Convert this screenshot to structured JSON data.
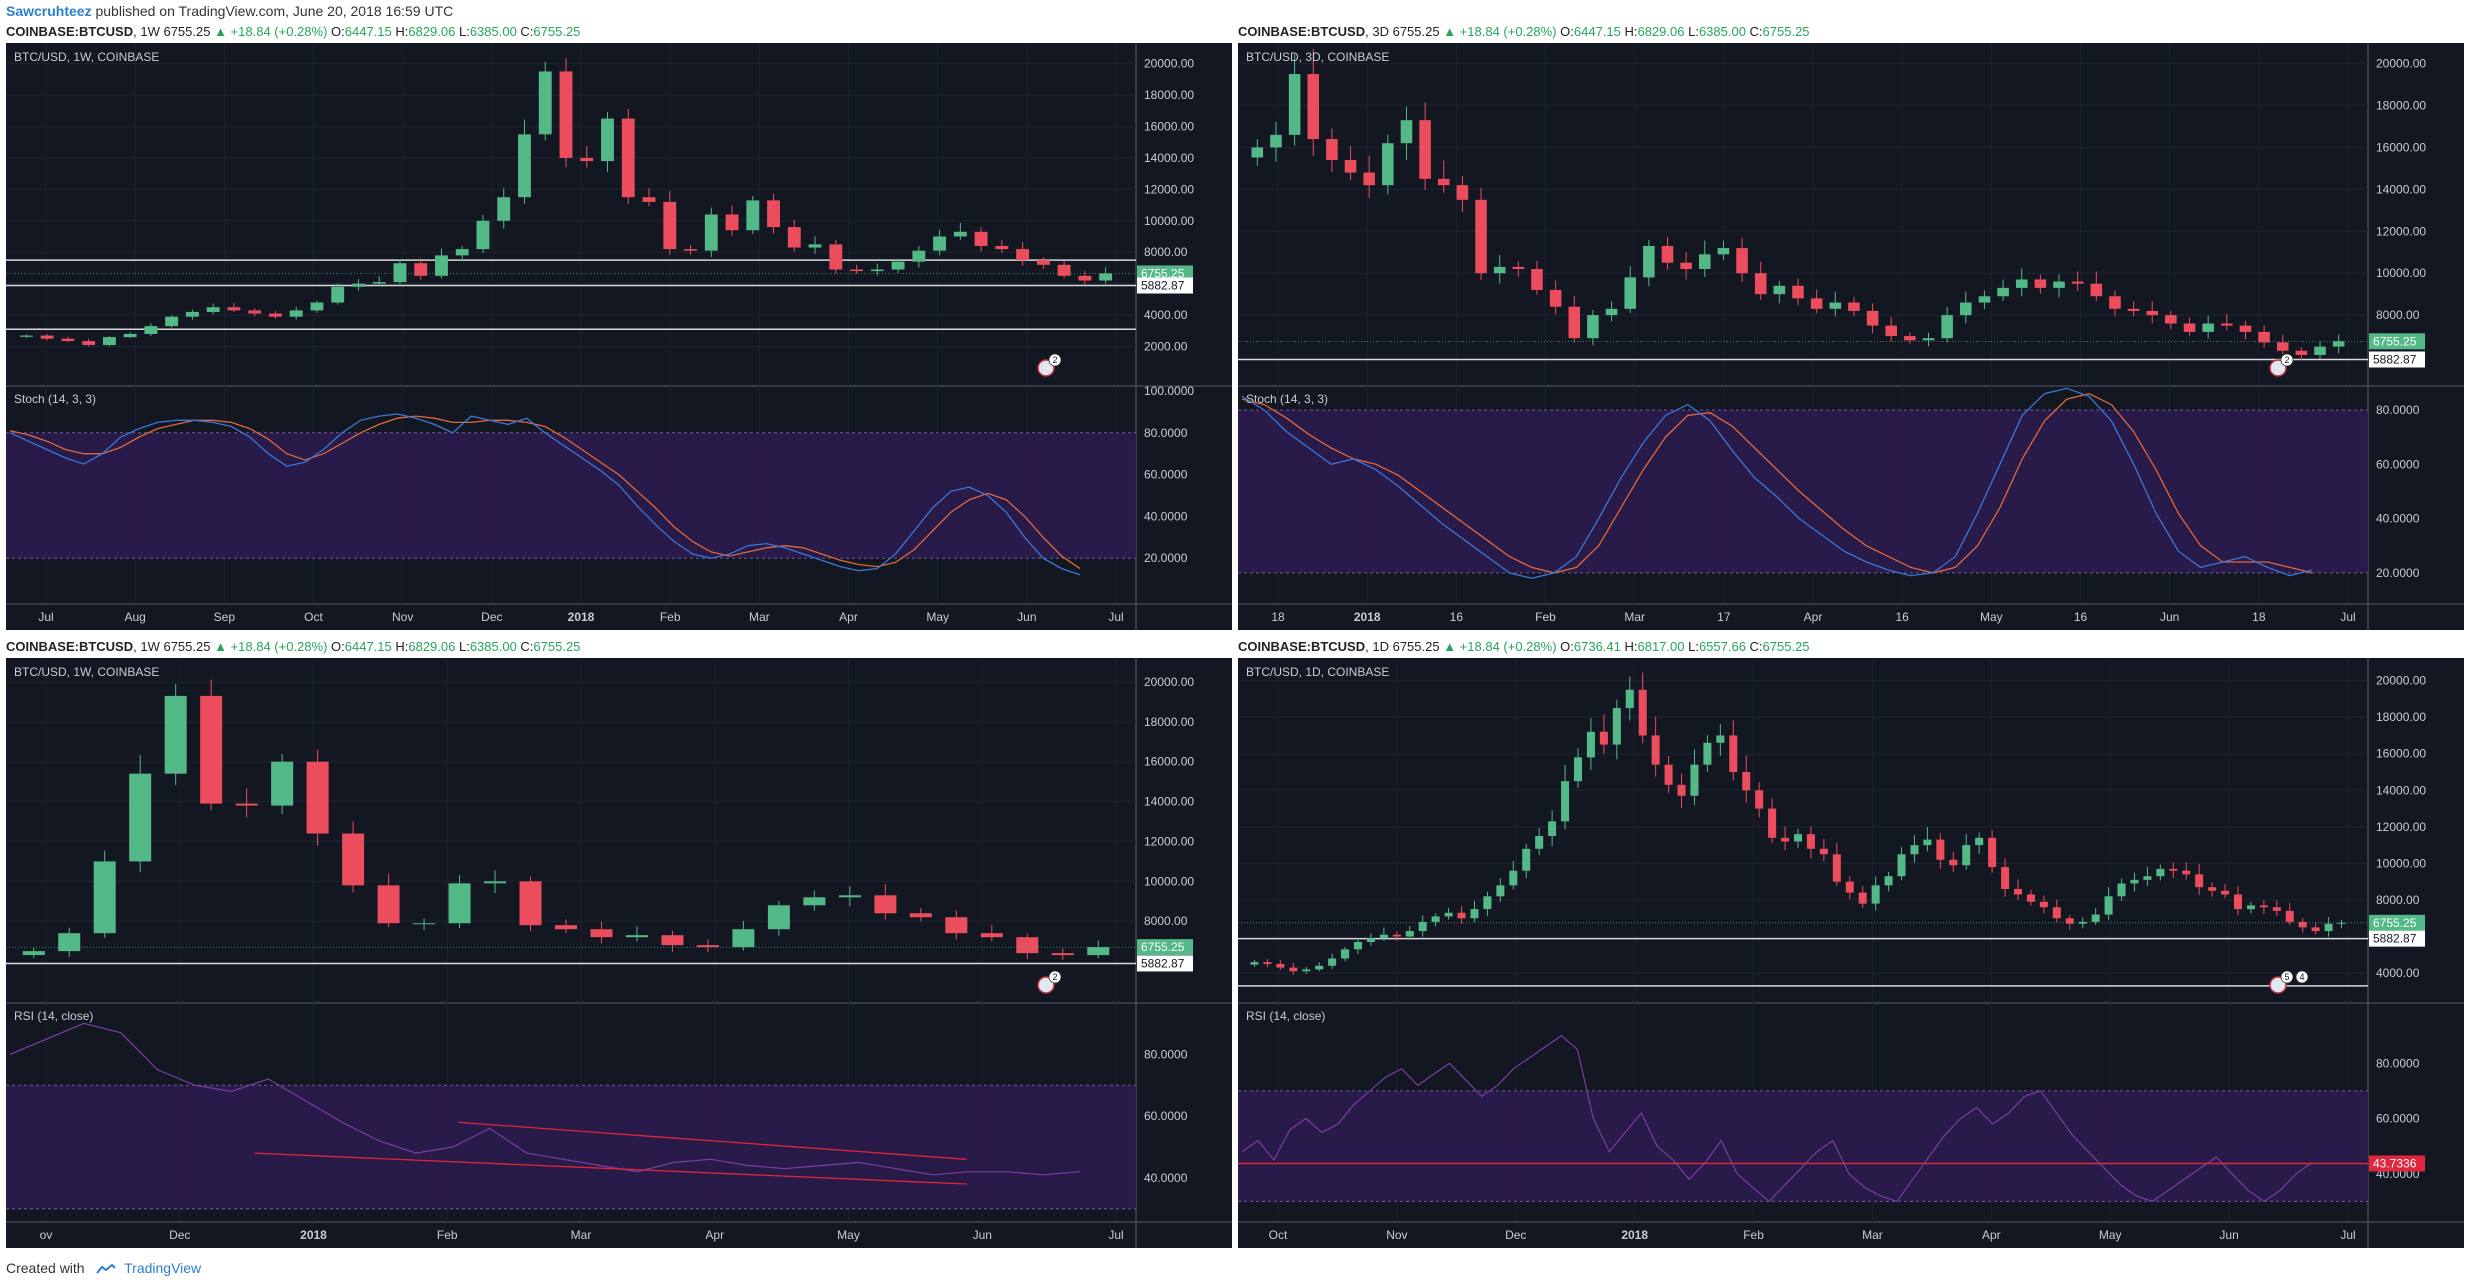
{
  "header": {
    "author": "Sawcruhteez",
    "published_text": "published on TradingView.com, June 20, 2018 16:59 UTC"
  },
  "footer": {
    "created_with": "Created with",
    "brand": "TradingView"
  },
  "colors": {
    "background": "#131722",
    "up": "#53b987",
    "down": "#eb4d5c",
    "band": "#2b1b4e",
    "stoch_k": "#3b76d6",
    "stoch_d": "#e0683a",
    "rsi": "#7a3ea1",
    "trend_line": "#e0263d",
    "price_label_bg": "#53b987"
  },
  "panels": [
    {
      "id": "p1",
      "header": {
        "symbol": "COINBASE:BTCUSD",
        "interval": "1W",
        "price": "6755.25",
        "change": "▲ +18.84 (+0.28%)",
        "o_label": "O:",
        "o": "6447.15",
        "h_label": "H:",
        "h": "6829.06",
        "l_label": "L:",
        "l": "6385.00",
        "c_label": "C:",
        "c": "6755.25"
      },
      "legend": "BTC/USD, 1W, COINBASE",
      "price_label": "6755.25",
      "hline_label": "5882.87",
      "indicator_name": "Stoch (14, 3, 3)",
      "ind_ticks": [
        "100.0000",
        "80.0000",
        "60.0000",
        "40.0000",
        "20.0000"
      ],
      "price_ticks": [
        "20000.00",
        "18000.00",
        "16000.00",
        "14000.00",
        "12000.00",
        "10000.00",
        "8000.00",
        "6000.00",
        "4000.00",
        "2000.00"
      ],
      "x_labels": [
        "Jul",
        "Aug",
        "Sep",
        "Oct",
        "Nov",
        "Dec",
        "2018",
        "Feb",
        "Mar",
        "Apr",
        "May",
        "Jun",
        "Jul"
      ],
      "badge": "2"
    },
    {
      "id": "p2",
      "header": {
        "symbol": "COINBASE:BTCUSD",
        "interval": "3D",
        "price": "6755.25",
        "change": "▲ +18.84 (+0.28%)",
        "o_label": "O:",
        "o": "6447.15",
        "h_label": "H:",
        "h": "6829.06",
        "l_label": "L:",
        "l": "6385.00",
        "c_label": "C:",
        "c": "6755.25"
      },
      "legend": "BTC/USD, 3D, COINBASE",
      "price_label": "6755.25",
      "hline_label": "5882.87",
      "indicator_name": "Stoch (14, 3, 3)",
      "ind_ticks": [
        "80.0000",
        "60.0000",
        "40.0000",
        "20.0000"
      ],
      "price_ticks": [
        "20000.00",
        "18000.00",
        "16000.00",
        "14000.00",
        "12000.00",
        "10000.00",
        "8000.00"
      ],
      "x_labels": [
        "18",
        "2018",
        "16",
        "Feb",
        "Mar",
        "17",
        "Apr",
        "16",
        "May",
        "16",
        "Jun",
        "18",
        "Jul"
      ],
      "badge": "2"
    },
    {
      "id": "p3",
      "header": {
        "symbol": "COINBASE:BTCUSD",
        "interval": "1W",
        "price": "6755.25",
        "change": "▲ +18.84 (+0.28%)",
        "o_label": "O:",
        "o": "6447.15",
        "h_label": "H:",
        "h": "6829.06",
        "l_label": "L:",
        "l": "6385.00",
        "c_label": "C:",
        "c": "6755.25"
      },
      "legend": "BTC/USD, 1W, COINBASE",
      "price_label": "6755.25",
      "hline_label": "5882.87",
      "indicator_name": "RSI (14, close)",
      "ind_ticks": [
        "80.0000",
        "60.0000",
        "40.0000"
      ],
      "price_ticks": [
        "20000.00",
        "18000.00",
        "16000.00",
        "14000.00",
        "12000.00",
        "10000.00",
        "8000.00"
      ],
      "x_labels": [
        "ov",
        "Dec",
        "2018",
        "Feb",
        "Mar",
        "Apr",
        "May",
        "Jun",
        "Jul"
      ],
      "badge": "2"
    },
    {
      "id": "p4",
      "header": {
        "symbol": "COINBASE:BTCUSD",
        "interval": "1D",
        "price": "6755.25",
        "change": "▲ +18.84 (+0.28%)",
        "o_label": "O:",
        "o": "6736.41",
        "h_label": "H:",
        "h": "6817.00",
        "l_label": "L:",
        "l": "6557.66",
        "c_label": "C:",
        "c": "6755.25"
      },
      "legend": "BTC/USD, 1D, COINBASE",
      "price_label": "6755.25",
      "hline_label": "5882.87",
      "indicator_name": "RSI (14, close)",
      "ind_ticks": [
        "80.0000",
        "60.0000",
        "40.0000"
      ],
      "rsi_label": "43.7336",
      "price_ticks": [
        "20000.00",
        "18000.00",
        "16000.00",
        "14000.00",
        "12000.00",
        "10000.00",
        "8000.00",
        "4000.00"
      ],
      "x_labels": [
        "Oct",
        "Nov",
        "Dec",
        "2018",
        "Feb",
        "Mar",
        "Apr",
        "May",
        "Jun",
        "Jul"
      ],
      "badge": "5",
      "badge2": "4"
    }
  ],
  "chart_data": [
    {
      "type": "candlestick",
      "title": "BTC/USD, 1W, COINBASE",
      "ylim": [
        0,
        20800
      ],
      "x": [
        "Jul",
        "Aug",
        "Sep",
        "Oct",
        "Nov",
        "Dec",
        "2018",
        "Feb",
        "Mar",
        "Apr",
        "May",
        "Jun",
        "Jul"
      ],
      "close_series": [
        2700,
        2500,
        2350,
        2100,
        2600,
        2800,
        3300,
        3900,
        4200,
        4500,
        4300,
        4100,
        3900,
        4300,
        4800,
        5800,
        6000,
        6100,
        7300,
        6500,
        7800,
        8200,
        10000,
        11500,
        15500,
        19500,
        14000,
        13800,
        16500,
        11500,
        11200,
        8200,
        8100,
        10400,
        9400,
        11300,
        9600,
        8300,
        8500,
        6900,
        6800,
        6900,
        7400,
        8100,
        9000,
        9300,
        8400,
        8200,
        7500,
        7200,
        6500,
        6200,
        6650
      ],
      "horizontal_lines": [
        5882.87,
        7500,
        3100
      ],
      "indicator": {
        "name": "Stoch (14, 3, 3)",
        "ylim": [
          0,
          100
        ],
        "band": [
          20,
          80
        ],
        "k": [
          80,
          76,
          72,
          68,
          65,
          70,
          78,
          82,
          85,
          86,
          86,
          85,
          83,
          78,
          70,
          64,
          66,
          72,
          80,
          86,
          88,
          89,
          87,
          84,
          80,
          88,
          86,
          84,
          87,
          80,
          74,
          68,
          62,
          55,
          45,
          36,
          28,
          22,
          20,
          22,
          26,
          27,
          25,
          22,
          19,
          16,
          14,
          15,
          22,
          33,
          44,
          52,
          54,
          50,
          42,
          30,
          20,
          15,
          12
        ],
        "d": [
          81,
          79,
          76,
          72,
          70,
          70,
          73,
          78,
          82,
          84,
          86,
          86,
          85,
          82,
          77,
          70,
          67,
          70,
          75,
          80,
          84,
          87,
          88,
          87,
          85,
          85,
          86,
          86,
          85,
          83,
          78,
          72,
          66,
          60,
          52,
          44,
          35,
          28,
          23,
          21,
          23,
          25,
          26,
          25,
          22,
          19,
          17,
          16,
          18,
          24,
          33,
          42,
          48,
          51,
          48,
          40,
          30,
          21,
          15
        ]
      }
    },
    {
      "type": "candlestick",
      "title": "BTC/USD, 3D, COINBASE",
      "ylim": [
        5000,
        20600
      ],
      "x": [
        "18",
        "2018",
        "16",
        "Feb",
        "Mar",
        "17",
        "Apr",
        "16",
        "May",
        "16",
        "Jun",
        "18",
        "Jul"
      ],
      "close_series": [
        16000,
        16600,
        19500,
        16400,
        15400,
        14800,
        14200,
        16200,
        17300,
        14500,
        14200,
        13500,
        10000,
        10300,
        10200,
        9200,
        8400,
        6900,
        8000,
        8300,
        9800,
        11300,
        10500,
        10200,
        10900,
        11200,
        10000,
        9000,
        9400,
        8800,
        8300,
        8600,
        8200,
        7500,
        7000,
        6800,
        6900,
        8000,
        8600,
        8900,
        9300,
        9700,
        9300,
        9600,
        9500,
        8900,
        8300,
        8200,
        8000,
        7600,
        7200,
        7600,
        7500,
        7200,
        6700,
        6300,
        6100,
        6500,
        6750
      ],
      "horizontal_lines": [
        5882.87
      ],
      "indicator": {
        "name": "Stoch (14, 3, 3)",
        "ylim": [
          10,
          87
        ],
        "band": [
          20,
          80
        ],
        "k": [
          85,
          80,
          72,
          66,
          60,
          62,
          58,
          52,
          45,
          38,
          32,
          26,
          20,
          18,
          20,
          26,
          40,
          55,
          68,
          78,
          82,
          76,
          65,
          55,
          48,
          40,
          34,
          28,
          24,
          21,
          19,
          20,
          26,
          42,
          60,
          78,
          86,
          88,
          85,
          76,
          60,
          42,
          28,
          22,
          24,
          26,
          22,
          19,
          21
        ],
        "d": [
          84,
          82,
          77,
          71,
          66,
          62,
          60,
          56,
          50,
          44,
          38,
          32,
          26,
          22,
          20,
          22,
          30,
          44,
          58,
          70,
          78,
          79,
          74,
          66,
          58,
          50,
          43,
          36,
          30,
          26,
          22,
          20,
          22,
          30,
          44,
          62,
          76,
          84,
          86,
          82,
          72,
          58,
          42,
          30,
          24,
          24,
          24,
          22,
          20
        ]
      }
    },
    {
      "type": "candlestick",
      "title": "BTC/USD, 1W, COINBASE",
      "ylim": [
        4300,
        20800
      ],
      "x": [
        "ov",
        "Dec",
        "2018",
        "Feb",
        "Mar",
        "Apr",
        "May",
        "Jun",
        "Jul"
      ],
      "close_series": [
        6500,
        7400,
        11000,
        15400,
        19300,
        13900,
        13800,
        16000,
        12400,
        9800,
        7900,
        7900,
        9900,
        10000,
        7800,
        7600,
        7200,
        7300,
        6800,
        6700,
        7600,
        8800,
        9200,
        9300,
        8400,
        8200,
        7400,
        7200,
        6400,
        6300,
        6700
      ],
      "horizontal_lines": [
        5882.87
      ],
      "indicator": {
        "name": "RSI (14, close)",
        "ylim": [
          27,
          95
        ],
        "band": [
          30,
          70
        ],
        "values": [
          80,
          85,
          90,
          87,
          75,
          70,
          68,
          72,
          65,
          58,
          52,
          48,
          50,
          56,
          48,
          46,
          44,
          42,
          45,
          46,
          44,
          43,
          44,
          45,
          43,
          41,
          42,
          42,
          41,
          42
        ],
        "trendlines": [
          [
            [
              0.22,
              48
            ],
            [
              0.85,
              38
            ]
          ],
          [
            [
              0.4,
              58
            ],
            [
              0.85,
              46
            ]
          ]
        ]
      }
    },
    {
      "type": "candlestick",
      "title": "BTC/USD, 1D, COINBASE",
      "ylim": [
        2800,
        20800
      ],
      "x": [
        "Oct",
        "Nov",
        "Dec",
        "2018",
        "Feb",
        "Mar",
        "Apr",
        "May",
        "Jun",
        "Jul"
      ],
      "close_series": [
        4600,
        4500,
        4300,
        4100,
        4200,
        4400,
        4800,
        5300,
        5700,
        5900,
        6100,
        6000,
        6300,
        6800,
        7100,
        7300,
        7000,
        7500,
        8200,
        8800,
        9600,
        10800,
        11500,
        12300,
        14500,
        15800,
        17200,
        16500,
        18500,
        19500,
        17000,
        15400,
        14300,
        13700,
        15400,
        16600,
        17000,
        15000,
        14000,
        13000,
        11400,
        11200,
        11600,
        10800,
        10500,
        9000,
        8400,
        7800,
        8800,
        9300,
        10500,
        11000,
        11300,
        10200,
        9900,
        11000,
        11400,
        9800,
        8600,
        8300,
        7900,
        7600,
        7000,
        6700,
        6800,
        7200,
        8200,
        8900,
        9100,
        9300,
        9700,
        9600,
        9400,
        8700,
        8500,
        8300,
        7500,
        7700,
        7600,
        7400,
        6800,
        6500,
        6300,
        6700,
        6750
      ],
      "horizontal_lines": [
        5882.87,
        3300
      ],
      "indicator": {
        "name": "RSI (14, close)",
        "ylim": [
          24,
          100
        ],
        "band": [
          30,
          70
        ],
        "level": 43.7336,
        "values": [
          48,
          52,
          45,
          56,
          60,
          55,
          58,
          65,
          70,
          75,
          78,
          72,
          76,
          80,
          74,
          68,
          72,
          78,
          82,
          86,
          90,
          85,
          60,
          48,
          55,
          62,
          50,
          45,
          38,
          44,
          52,
          40,
          35,
          30,
          36,
          42,
          48,
          52,
          40,
          35,
          32,
          30,
          38,
          46,
          54,
          60,
          64,
          58,
          62,
          68,
          70,
          62,
          54,
          48,
          42,
          36,
          32,
          30,
          34,
          38,
          42,
          46,
          40,
          34,
          30,
          34,
          40,
          44
        ]
      }
    }
  ]
}
